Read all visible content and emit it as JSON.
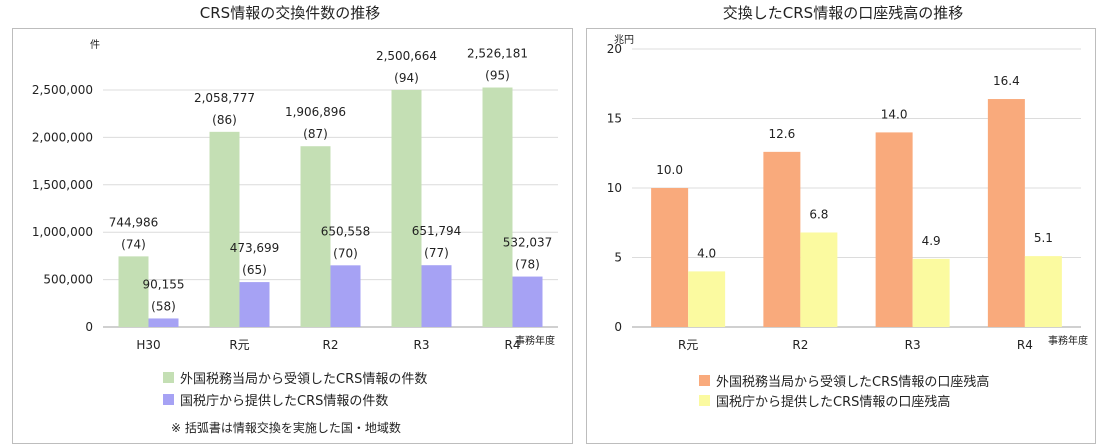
{
  "charts": [
    {
      "title": "CRS情報の交換件数の推移",
      "unit": "件",
      "x_unit": "事務年度",
      "legend": [
        "外国税務当局から受領したCRS情報の件数",
        "国税庁から提供したCRS情報の件数"
      ],
      "note": "※ 括弧書は情報交換を実施した国・地域数"
    },
    {
      "title": "交換したCRS情報の口座残高の推移",
      "unit": "兆円",
      "x_unit": "事務年度",
      "legend": [
        "外国税務当局から受領したCRS情報の口座残高",
        "国税庁から提供したCRS情報の口座残高"
      ]
    }
  ],
  "chart_data": [
    {
      "type": "bar",
      "title": "CRS情報の交換件数の推移",
      "xlabel": "事務年度",
      "ylabel": "件",
      "ylim": [
        0,
        2500000
      ],
      "yticks": [
        "0",
        "500,000",
        "1,000,000",
        "1,500,000",
        "2,000,000",
        "2,500,000"
      ],
      "ytick_values": [
        0,
        500000,
        1000000,
        1500000,
        2000000,
        2500000
      ],
      "categories": [
        "H30",
        "R元",
        "R2",
        "R3",
        "R4"
      ],
      "grid": true,
      "legend_position": "bottom",
      "series": [
        {
          "name": "外国税務当局から受領したCRS情報の件数",
          "color": "#c4dfb4",
          "values": [
            744986,
            2058777,
            1906896,
            2500664,
            2526181
          ],
          "labels": [
            "744,986",
            "2,058,777",
            "1,906,896",
            "2,500,664",
            "2,526,181"
          ],
          "sublabels": [
            "(74)",
            "(86)",
            "(87)",
            "(94)",
            "(95)"
          ]
        },
        {
          "name": "国税庁から提供したCRS情報の件数",
          "color": "#a6a2f4",
          "values": [
            90155,
            473699,
            650558,
            651794,
            532037
          ],
          "labels": [
            "90,155",
            "473,699",
            "650,558",
            "651,794",
            "532,037"
          ],
          "sublabels": [
            "(58)",
            "(65)",
            "(70)",
            "(77)",
            "(78)"
          ]
        }
      ]
    },
    {
      "type": "bar",
      "title": "交換したCRS情報の口座残高の推移",
      "xlabel": "事務年度",
      "ylabel": "兆円",
      "ylim": [
        0,
        20
      ],
      "yticks": [
        "0",
        "5",
        "10",
        "15",
        "20"
      ],
      "ytick_values": [
        0,
        5,
        10,
        15,
        20
      ],
      "categories": [
        "R元",
        "R2",
        "R3",
        "R4"
      ],
      "grid": true,
      "legend_position": "bottom",
      "series": [
        {
          "name": "外国税務当局から受領したCRS情報の口座残高",
          "color": "#f9aa7c",
          "values": [
            10.0,
            12.6,
            14.0,
            16.4
          ],
          "labels": [
            "10.0",
            "12.6",
            "14.0",
            "16.4"
          ]
        },
        {
          "name": "国税庁から提供したCRS情報の口座残高",
          "color": "#fbfaa0",
          "values": [
            4.0,
            6.8,
            4.9,
            5.1
          ],
          "labels": [
            "4.0",
            "6.8",
            "4.9",
            "5.1"
          ]
        }
      ]
    }
  ]
}
